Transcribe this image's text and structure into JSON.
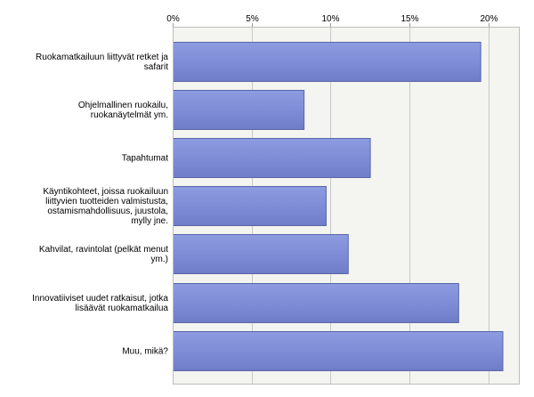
{
  "chart_data": {
    "type": "bar",
    "orientation": "horizontal",
    "title": "",
    "xlabel": "",
    "ylabel": "",
    "xlim": [
      0,
      22
    ],
    "x_ticks": [
      0,
      5,
      10,
      15,
      20
    ],
    "x_tick_labels": [
      "0%",
      "5%",
      "10%",
      "15%",
      "20%"
    ],
    "grid": true,
    "legend": "none",
    "bar_color": "#8090d8",
    "bar_edge_color": "#5a66a8",
    "plot_background": "#f4f4f0",
    "categories": [
      {
        "lines": [
          "Ruokamatkailuun liittyvät retket ja",
          "safarit"
        ]
      },
      {
        "lines": [
          "Ohjelmallinen ruokailu,",
          "ruokanäytelmät ym."
        ]
      },
      {
        "lines": [
          "Tapahtumat"
        ]
      },
      {
        "lines": [
          "Käyntikohteet, joissa ruokailuun",
          "liittyvien tuotteiden valmistusta,",
          "ostamismahdollisuus, juustola,",
          "mylly jne."
        ]
      },
      {
        "lines": [
          "Kahvilat, ravintolat (pelkät menut",
          "ym.)"
        ]
      },
      {
        "lines": [
          "Innovatiiviset uudet ratkaisut, jotka",
          "lisäävät ruokamatkailua"
        ]
      },
      {
        "lines": [
          "Muu, mikä?"
        ]
      }
    ],
    "values": [
      19.5,
      8.3,
      12.5,
      9.7,
      11.1,
      18.1,
      20.9
    ]
  }
}
